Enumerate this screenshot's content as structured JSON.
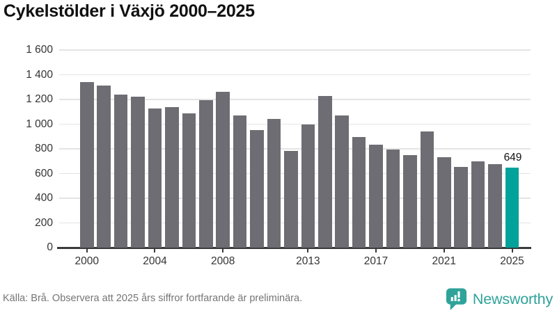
{
  "title": "Cykelstölder i Växjö 2000–2025",
  "chart_data": {
    "type": "bar",
    "categories": [
      2000,
      2001,
      2002,
      2003,
      2004,
      2005,
      2006,
      2007,
      2008,
      2009,
      2010,
      2011,
      2012,
      2013,
      2014,
      2015,
      2016,
      2017,
      2018,
      2019,
      2020,
      2021,
      2022,
      2023,
      2024,
      2025
    ],
    "values": [
      1340,
      1315,
      1240,
      1225,
      1125,
      1140,
      1085,
      1195,
      1260,
      1070,
      955,
      1040,
      785,
      995,
      1230,
      1070,
      895,
      835,
      795,
      750,
      940,
      730,
      655,
      700,
      675,
      649
    ],
    "title": "Cykelstölder i Växjö 2000–2025",
    "xlabel": "",
    "ylabel": "",
    "ylim": [
      0,
      1600
    ],
    "grid": true,
    "legend_position": "none",
    "bar_color": "#6e6d73",
    "highlight_color": "#00a29a",
    "highlight_index": 25,
    "highlight_label": "649",
    "yticks": [
      {
        "value": 0,
        "label": "0"
      },
      {
        "value": 200,
        "label": "200"
      },
      {
        "value": 400,
        "label": "400"
      },
      {
        "value": 600,
        "label": "600"
      },
      {
        "value": 800,
        "label": "800"
      },
      {
        "value": 1000,
        "label": "1 000"
      },
      {
        "value": 1200,
        "label": "1 200"
      },
      {
        "value": 1400,
        "label": "1 400"
      },
      {
        "value": 1600,
        "label": "1 600"
      }
    ],
    "xticks": [
      {
        "index": 0,
        "label": "2000"
      },
      {
        "index": 4,
        "label": "2004"
      },
      {
        "index": 8,
        "label": "2008"
      },
      {
        "index": 13,
        "label": "2013"
      },
      {
        "index": 17,
        "label": "2017"
      },
      {
        "index": 21,
        "label": "2021"
      },
      {
        "index": 25,
        "label": "2025"
      }
    ]
  },
  "footer": {
    "source_note": "Källa: Brå. Observera att 2025 års siffror fortfarande är preliminära.",
    "brand": "Newsworthy"
  },
  "colors": {
    "bar": "#6e6d73",
    "highlight": "#00a29a",
    "gridline": "#e4e4e4",
    "axis": "#3a3a3a",
    "brand_teal": "#2fa39a"
  }
}
